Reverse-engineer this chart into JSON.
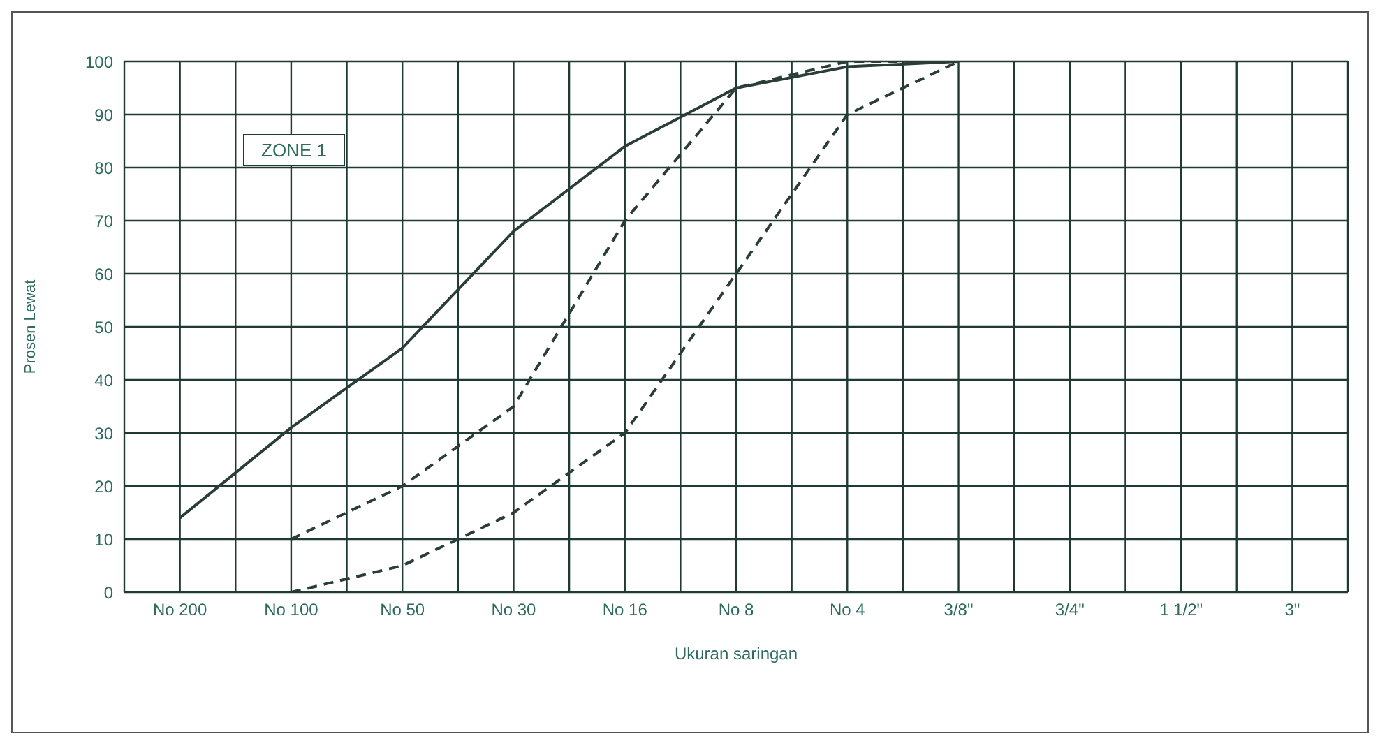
{
  "chart_data": {
    "type": "line",
    "xlabel": "Ukuran saringan",
    "ylabel": "Prosen Lewat",
    "categories": [
      "No 200",
      "No 100",
      "No 50",
      "No 30",
      "No 16",
      "No 8",
      "No 4",
      "3/8\"",
      "3/4\"",
      "1 1/2\"",
      "3\""
    ],
    "series": [
      {
        "color": "#2b3d38",
        "line_style": "solid",
        "values": [
          14,
          31,
          46,
          68,
          84,
          95,
          99,
          100,
          null,
          null,
          null
        ]
      },
      {
        "color": "#2b3d38",
        "line_style": "dashed",
        "values": [
          null,
          10,
          20,
          35,
          70,
          95,
          100,
          100,
          null,
          null,
          null
        ]
      },
      {
        "color": "#2b3d38",
        "line_style": "dashed",
        "values": [
          null,
          0,
          5,
          15,
          30,
          60,
          90,
          100,
          null,
          null,
          null
        ]
      }
    ],
    "ylim": [
      0,
      100
    ],
    "yticks": [
      0,
      10,
      20,
      30,
      40,
      50,
      60,
      70,
      80,
      90,
      100
    ],
    "grid": true,
    "marker": "none",
    "annotations": [
      "ZONE 1"
    ]
  }
}
